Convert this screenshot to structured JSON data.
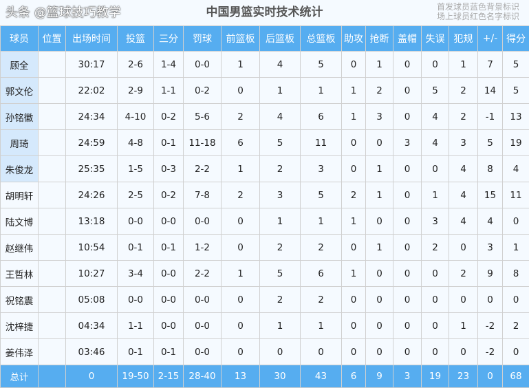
{
  "title": "中国男篮实时技术统计",
  "legend": [
    "首发球员蓝色背景标识",
    "场上球员红色名字标识"
  ],
  "colors": {
    "header": "#56adf0",
    "starter": "#d5e9fc"
  },
  "columns": [
    "球员",
    "位置",
    "出场时间",
    "投篮",
    "三分",
    "罚球",
    "前篮板",
    "后篮板",
    "总篮板",
    "助攻",
    "抢断",
    "盖帽",
    "失误",
    "犯规",
    "+/-",
    "得分"
  ],
  "rows": [
    {
      "starter": true,
      "cells": [
        "顾全",
        "",
        "30:17",
        "2-6",
        "1-4",
        "0-0",
        "1",
        "4",
        "5",
        "0",
        "1",
        "0",
        "0",
        "1",
        "7",
        "5"
      ]
    },
    {
      "starter": true,
      "cells": [
        "郭文伦",
        "",
        "22:02",
        "2-9",
        "1-1",
        "0-2",
        "0",
        "1",
        "1",
        "1",
        "2",
        "0",
        "5",
        "2",
        "14",
        "5"
      ]
    },
    {
      "starter": true,
      "cells": [
        "孙铭徽",
        "",
        "24:34",
        "4-10",
        "0-2",
        "5-6",
        "2",
        "4",
        "6",
        "1",
        "3",
        "0",
        "4",
        "2",
        "-1",
        "13"
      ]
    },
    {
      "starter": true,
      "cells": [
        "周琦",
        "",
        "24:59",
        "4-8",
        "0-1",
        "11-18",
        "6",
        "5",
        "11",
        "0",
        "0",
        "3",
        "4",
        "3",
        "5",
        "19"
      ]
    },
    {
      "starter": true,
      "cells": [
        "朱俊龙",
        "",
        "25:35",
        "1-5",
        "0-3",
        "2-2",
        "1",
        "2",
        "3",
        "0",
        "1",
        "0",
        "0",
        "4",
        "8",
        "4"
      ]
    },
    {
      "starter": false,
      "cells": [
        "胡明轩",
        "",
        "24:26",
        "2-5",
        "0-2",
        "7-8",
        "2",
        "3",
        "5",
        "2",
        "1",
        "0",
        "1",
        "4",
        "15",
        "11"
      ]
    },
    {
      "starter": false,
      "cells": [
        "陆文博",
        "",
        "13:18",
        "0-0",
        "0-0",
        "0-0",
        "0",
        "1",
        "1",
        "1",
        "0",
        "0",
        "3",
        "4",
        "4",
        "0"
      ]
    },
    {
      "starter": false,
      "cells": [
        "赵继伟",
        "",
        "10:54",
        "0-1",
        "0-1",
        "1-2",
        "0",
        "2",
        "2",
        "0",
        "1",
        "0",
        "2",
        "0",
        "3",
        "1"
      ]
    },
    {
      "starter": false,
      "cells": [
        "王哲林",
        "",
        "10:27",
        "3-4",
        "0-0",
        "2-2",
        "1",
        "5",
        "6",
        "1",
        "0",
        "0",
        "0",
        "2",
        "9",
        "8"
      ]
    },
    {
      "starter": false,
      "cells": [
        "祝铭震",
        "",
        "05:08",
        "0-0",
        "0-0",
        "0-0",
        "0",
        "2",
        "2",
        "0",
        "0",
        "0",
        "0",
        "0",
        "0",
        "0"
      ]
    },
    {
      "starter": false,
      "cells": [
        "沈梓捷",
        "",
        "04:34",
        "1-1",
        "0-0",
        "0-0",
        "0",
        "1",
        "1",
        "0",
        "0",
        "0",
        "0",
        "1",
        "-2",
        "2"
      ]
    },
    {
      "starter": false,
      "cells": [
        "姜伟泽",
        "",
        "03:46",
        "0-1",
        "0-1",
        "0-0",
        "0",
        "0",
        "0",
        "0",
        "0",
        "0",
        "0",
        "0",
        "-2",
        "0"
      ]
    }
  ],
  "total": [
    "总计",
    "",
    "0",
    "19-50",
    "2-15",
    "28-40",
    "13",
    "30",
    "43",
    "6",
    "9",
    "3",
    "19",
    "23",
    "0",
    "68"
  ],
  "watermark": "头条 @篮球技巧教学"
}
